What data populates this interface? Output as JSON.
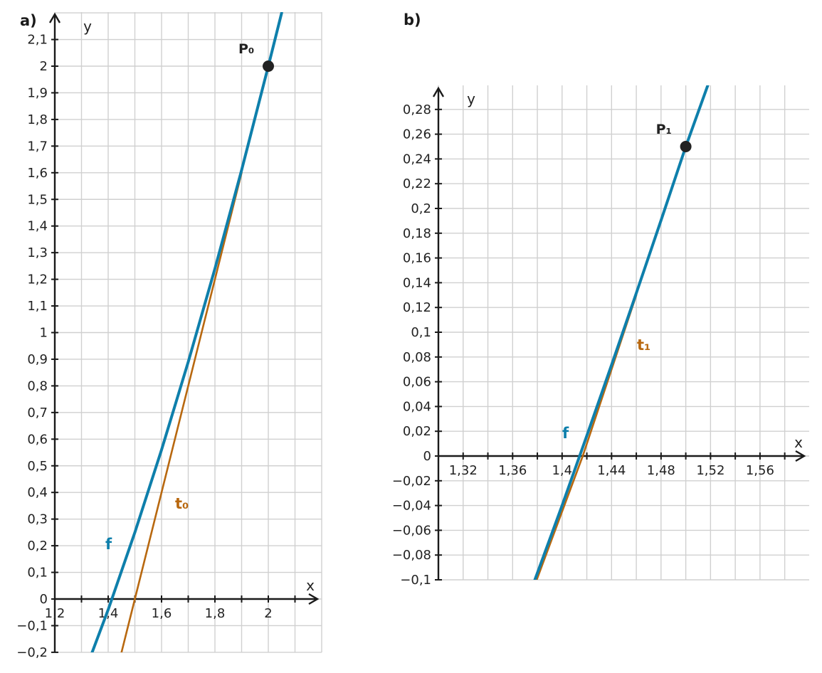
{
  "colors": {
    "f": "#0e7fab",
    "t": "#b8680f",
    "point": "#222222",
    "axis": "#1a1a1a",
    "grid": "#d0d0d0"
  },
  "chart_data": [
    {
      "type": "line",
      "panel_label": "a)",
      "xlabel": "x",
      "ylabel": "y",
      "xlim": [
        1.2,
        2.2
      ],
      "ylim": [
        -0.2,
        2.2
      ],
      "grid": true,
      "x_ticks": [
        "1,2",
        "1,4",
        "1,6",
        "1,8",
        "2"
      ],
      "x_tick_values": [
        1.2,
        1.4,
        1.6,
        1.8,
        2.0
      ],
      "y_ticks": [
        "−0,2",
        "−0,1",
        "0",
        "0,1",
        "0,2",
        "0,3",
        "0,4",
        "0,5",
        "0,6",
        "0,7",
        "0,8",
        "0,9",
        "1",
        "1,1",
        "1,2",
        "1,3",
        "1,4",
        "1,5",
        "1,6",
        "1,7",
        "1,8",
        "1,9",
        "2",
        "2,1"
      ],
      "y_tick_values": [
        -0.2,
        -0.1,
        0,
        0.1,
        0.2,
        0.3,
        0.4,
        0.5,
        0.6,
        0.7,
        0.8,
        0.9,
        1.0,
        1.1,
        1.2,
        1.3,
        1.4,
        1.5,
        1.6,
        1.7,
        1.8,
        1.9,
        2.0,
        2.1
      ],
      "series": [
        {
          "name": "f",
          "x": [
            1.34,
            1.4,
            1.5,
            1.6,
            1.7,
            1.8,
            1.9,
            2.0,
            2.05
          ],
          "y": [
            -0.2,
            -0.04,
            0.25,
            0.56,
            0.89,
            1.24,
            1.61,
            2.0,
            2.2
          ]
        },
        {
          "name": "t₀",
          "x": [
            1.45,
            1.5,
            1.9
          ],
          "y": [
            -0.2,
            0.0,
            1.6
          ]
        }
      ],
      "points": [
        {
          "label": "P₀",
          "x": 2.0,
          "y": 2.0
        }
      ]
    },
    {
      "type": "line",
      "panel_label": "b)",
      "xlabel": "x",
      "ylabel": "y",
      "xlim": [
        1.3,
        1.58
      ],
      "ylim": [
        -0.1,
        0.29
      ],
      "grid": true,
      "x_ticks": [
        "1,32",
        "1,36",
        "1,4",
        "1,44",
        "1,48",
        "1,52",
        "1,56"
      ],
      "x_tick_values": [
        1.32,
        1.36,
        1.4,
        1.44,
        1.48,
        1.52,
        1.56
      ],
      "y_ticks": [
        "−0,1",
        "−0,08",
        "−0,06",
        "−0,04",
        "−0,02",
        "0",
        "0,02",
        "0,04",
        "0,06",
        "0,08",
        "0,1",
        "0,12",
        "0,14",
        "0,16",
        "0,18",
        "0,2",
        "0,22",
        "0,24",
        "0,26",
        "0,28"
      ],
      "y_tick_values": [
        -0.1,
        -0.08,
        -0.06,
        -0.04,
        -0.02,
        0,
        0.02,
        0.04,
        0.06,
        0.08,
        0.1,
        0.12,
        0.14,
        0.16,
        0.18,
        0.2,
        0.22,
        0.24,
        0.26,
        0.28
      ],
      "series": [
        {
          "name": "f",
          "x": [
            1.378,
            1.4,
            1.42,
            1.44,
            1.46,
            1.48,
            1.5,
            1.518
          ],
          "y": [
            -0.1,
            -0.04,
            0.0164,
            0.0736,
            0.1316,
            0.1904,
            0.25,
            0.3
          ]
        },
        {
          "name": "t₁",
          "x": [
            1.3795,
            1.4167,
            1.46
          ],
          "y": [
            -0.1,
            0.0,
            0.13
          ]
        }
      ],
      "points": [
        {
          "label": "P₁",
          "x": 1.5,
          "y": 0.25
        }
      ]
    }
  ]
}
